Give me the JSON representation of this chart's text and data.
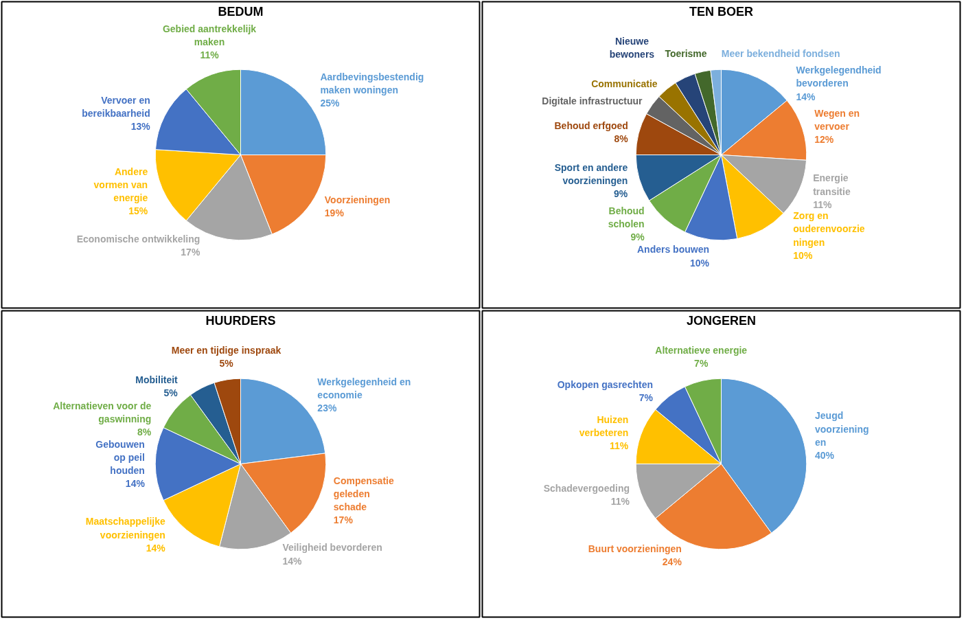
{
  "chart_data": [
    {
      "type": "pie",
      "title": "BEDUM",
      "categories": [
        "Aardbevingsbestendig\nmaken woningen",
        "Voorzieningen",
        "Economische ontwikkeling",
        "Andere\nvormen van\nenergie",
        "Vervoer en\nbereikbaarheid",
        "Gebied aantrekkelijk\nmaken"
      ],
      "values": [
        25,
        19,
        17,
        15,
        13,
        11
      ],
      "colors": [
        "#5b9bd5",
        "#ed7d31",
        "#a5a5a5",
        "#ffc000",
        "#4472c4",
        "#70ad47"
      ],
      "value_labels": [
        "25%",
        "19%",
        "17%",
        "15%",
        "13%",
        "11%"
      ]
    },
    {
      "type": "pie",
      "title": "TEN BOER",
      "categories": [
        "Werkgelegendheid\nbevorderen",
        "Wegen en\nvervoer",
        "Energie\ntransitie",
        "Zorg en\nouderenvoorzie\nningen",
        "Anders bouwen",
        "Behoud\nscholen",
        "Sport en andere\nvoorzieningen",
        "Behoud erfgoed",
        "Digitale infrastructuur",
        "Communicatie",
        "Nieuwe\nbewoners",
        "Toerisme",
        "Meer bekendheid fondsen"
      ],
      "values": [
        14,
        12,
        11,
        10,
        10,
        9,
        9,
        8,
        4,
        4,
        4,
        3,
        2
      ],
      "colors": [
        "#5b9bd5",
        "#ed7d31",
        "#a5a5a5",
        "#ffc000",
        "#4472c4",
        "#70ad47",
        "#255e91",
        "#9e480e",
        "#636363",
        "#997300",
        "#264478",
        "#43682b",
        "#7cafdd"
      ],
      "value_labels": [
        "14%",
        "12%",
        "11%",
        "10%",
        "10%",
        "9%",
        "9%",
        "8%",
        null,
        null,
        null,
        null,
        null
      ]
    },
    {
      "type": "pie",
      "title": "HUURDERS",
      "categories": [
        "Werkgelegenheid en\neconomie",
        "Compensatie\ngeleden\nschade",
        "Veiligheid bevorderen",
        "Maatschappelijke\nvoorzieningen",
        "Gebouwen\nop peil\nhouden",
        "Alternatieven voor de\ngaswinning",
        "Mobiliteit",
        "Meer en tijdige inspraak"
      ],
      "values": [
        23,
        17,
        14,
        14,
        14,
        8,
        5,
        5
      ],
      "colors": [
        "#5b9bd5",
        "#ed7d31",
        "#a5a5a5",
        "#ffc000",
        "#4472c4",
        "#70ad47",
        "#255e91",
        "#9e480e"
      ],
      "value_labels": [
        "23%",
        "17%",
        "14%",
        "14%",
        "14%",
        "8%",
        "5%",
        "5%"
      ]
    },
    {
      "type": "pie",
      "title": "JONGEREN",
      "categories": [
        "Jeugd\nvoorziening\nen",
        "Buurt voorzieningen",
        "Schadevergoeding",
        "Huizen\nverbeteren",
        "Opkopen gasrechten",
        "Alternatieve energie"
      ],
      "values": [
        40,
        24,
        11,
        11,
        7,
        7
      ],
      "colors": [
        "#5b9bd5",
        "#ed7d31",
        "#a5a5a5",
        "#ffc000",
        "#4472c4",
        "#70ad47"
      ],
      "value_labels": [
        "40%",
        "24%",
        "11%",
        "11%",
        "7%",
        "7%"
      ]
    }
  ]
}
